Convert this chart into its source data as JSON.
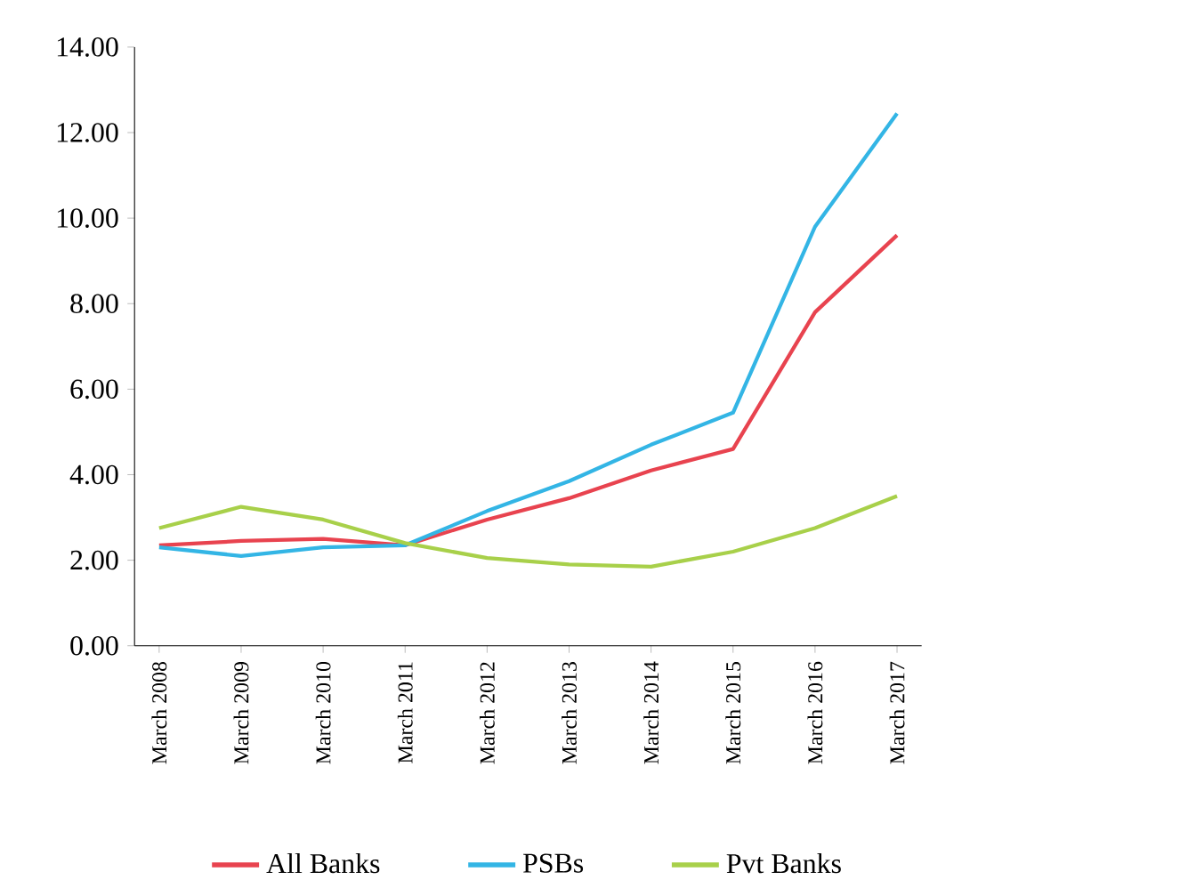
{
  "chart_data": {
    "type": "line",
    "categories": [
      "March 2008",
      "March 2009",
      "March 2010",
      "March 2011",
      "March 2012",
      "March 2013",
      "March 2014",
      "March 2015",
      "March 2016",
      "March 2017"
    ],
    "series": [
      {
        "name": "All Banks",
        "color": "#e8434f",
        "values": [
          2.35,
          2.45,
          2.5,
          2.35,
          2.95,
          3.45,
          4.1,
          4.6,
          7.8,
          9.6
        ]
      },
      {
        "name": "PSBs",
        "color": "#33b5e5",
        "values": [
          2.3,
          2.1,
          2.3,
          2.35,
          3.15,
          3.85,
          4.7,
          5.45,
          9.8,
          12.45
        ]
      },
      {
        "name": "Pvt Banks",
        "color": "#a8d04a",
        "values": [
          2.75,
          3.25,
          2.95,
          2.4,
          2.05,
          1.9,
          1.85,
          2.2,
          2.75,
          3.5
        ]
      }
    ],
    "ylim": [
      0,
      14
    ],
    "yticks": [
      {
        "value": 0,
        "label": "0.00"
      },
      {
        "value": 2,
        "label": "2.00"
      },
      {
        "value": 4,
        "label": "4.00"
      },
      {
        "value": 6,
        "label": "6.00"
      },
      {
        "value": 8,
        "label": "8.00"
      },
      {
        "value": 10,
        "label": "10.00"
      },
      {
        "value": 12,
        "label": "12.00"
      },
      {
        "value": 14,
        "label": "14.00"
      }
    ],
    "grid": false,
    "legend": "bottom",
    "marker": "none",
    "line_style": "solid"
  }
}
